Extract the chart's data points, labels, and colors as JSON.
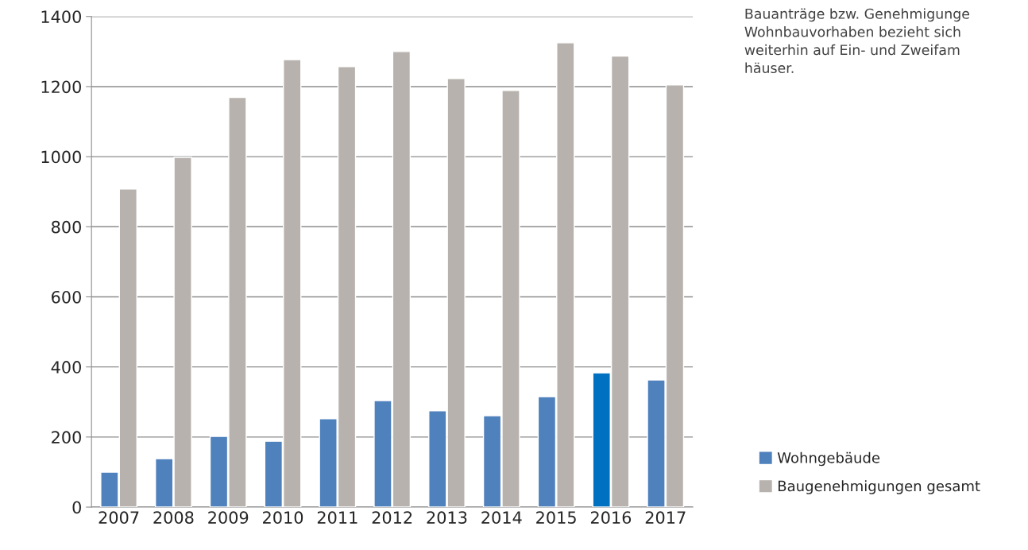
{
  "chart_data": {
    "type": "bar",
    "categories": [
      "2007",
      "2008",
      "2009",
      "2010",
      "2011",
      "2012",
      "2013",
      "2014",
      "2015",
      "2016",
      "2017"
    ],
    "series": [
      {
        "name": "Wohngebäude",
        "color": "#4f81bd",
        "colors": [
          "#4f81bd",
          "#4f81bd",
          "#4f81bd",
          "#4f81bd",
          "#4f81bd",
          "#4f81bd",
          "#4f81bd",
          "#4f81bd",
          "#4f81bd",
          "#0070c0",
          "#4f81bd"
        ],
        "values": [
          100,
          138,
          202,
          188,
          252,
          304,
          275,
          261,
          315,
          383,
          363
        ]
      },
      {
        "name": "Baugenehmigungen gesamt",
        "color": "#b7b2ad",
        "values": [
          908,
          998,
          1169,
          1277,
          1257,
          1300,
          1223,
          1189,
          1325,
          1287,
          1205
        ]
      }
    ],
    "ylim": [
      0,
      1400
    ],
    "yticks": [
      0,
      200,
      400,
      600,
      800,
      1000,
      1200,
      1400
    ],
    "grid": "y",
    "legend": "bottom right",
    "annotations": [
      "Bauanträge bzw. Genehmigunge\nWohnbauvorhaben bezieht sich\nweiterhin auf Ein- und Zweifam\nhäuser."
    ]
  }
}
